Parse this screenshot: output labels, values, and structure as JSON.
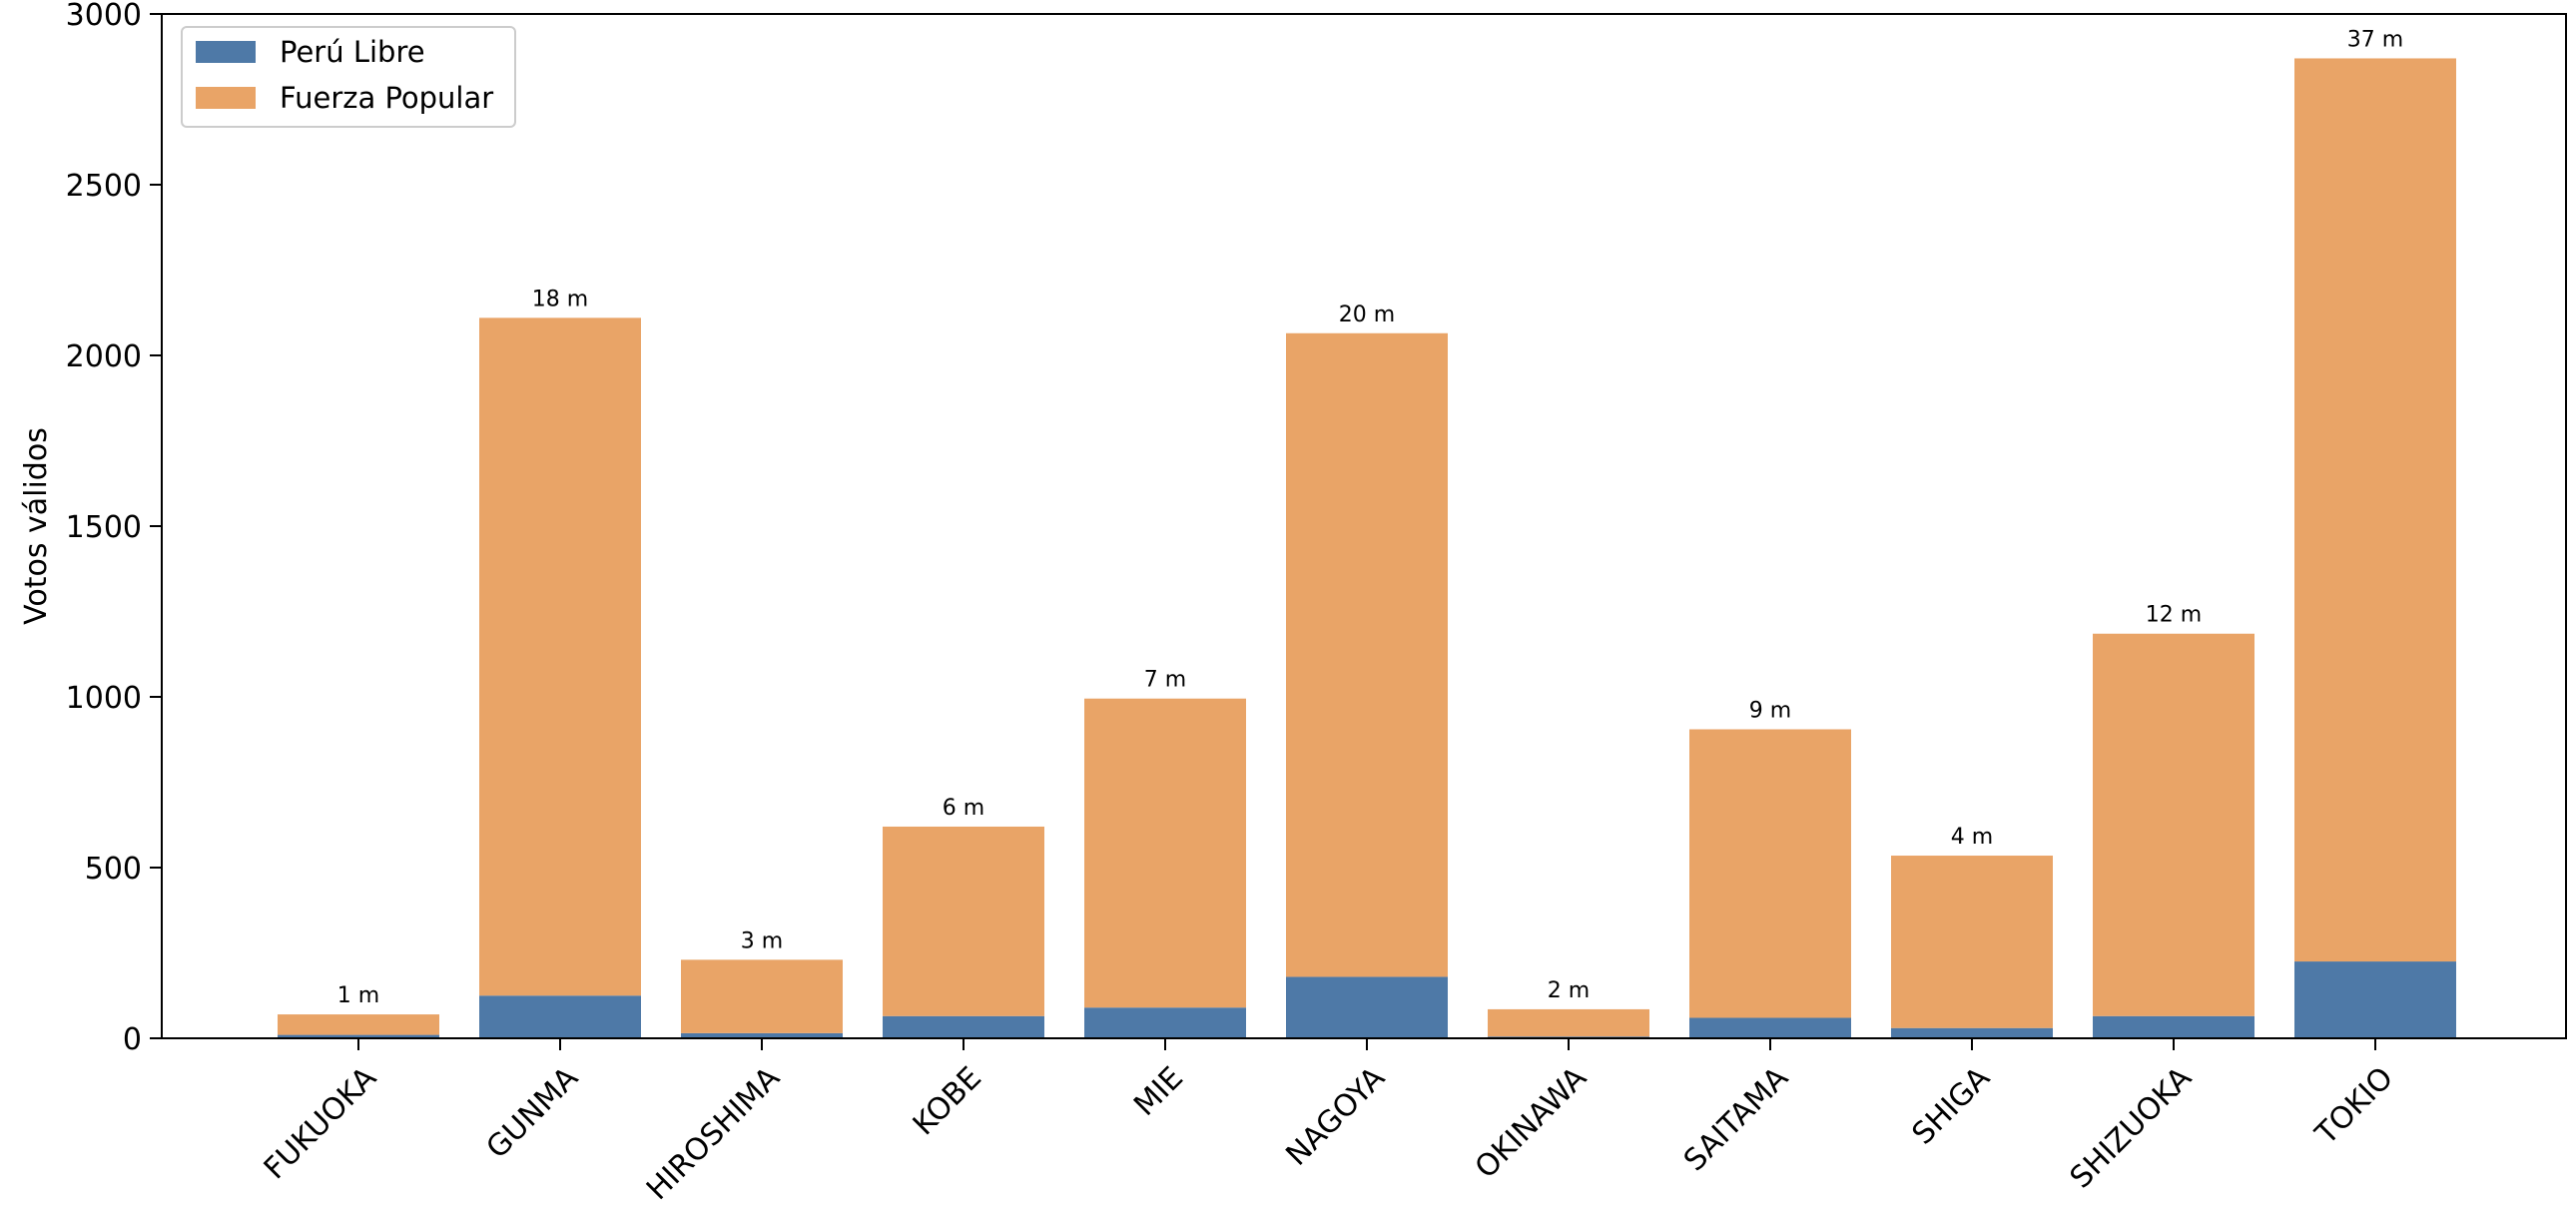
{
  "chart_data": {
    "type": "bar",
    "stacked": true,
    "ylabel": "Votos válidos",
    "ylim": [
      0,
      3000
    ],
    "yticks": [
      0,
      500,
      1000,
      1500,
      2000,
      2500,
      3000
    ],
    "categories": [
      "FUKUOKA",
      "GUNMA",
      "HIROSHIMA",
      "KOBE",
      "MIE",
      "NAGOYA",
      "OKINAWA",
      "SAITAMA",
      "SHIGA",
      "SHIZUOKA",
      "TOKIO"
    ],
    "series": [
      {
        "name": "Perú Libre",
        "color": "#4e79a7",
        "values": [
          10,
          125,
          15,
          65,
          90,
          180,
          5,
          60,
          30,
          65,
          225
        ]
      },
      {
        "name": "Fuerza Popular",
        "color": "#e9a467",
        "values": [
          60,
          1985,
          215,
          555,
          905,
          1885,
          80,
          845,
          505,
          1120,
          2645
        ]
      }
    ],
    "bar_labels": [
      "1 m",
      "18 m",
      "3 m",
      "6 m",
      "7 m",
      "20 m",
      "2 m",
      "9 m",
      "4 m",
      "12 m",
      "37 m"
    ],
    "legend": {
      "position": "top-left"
    },
    "grid": false
  }
}
